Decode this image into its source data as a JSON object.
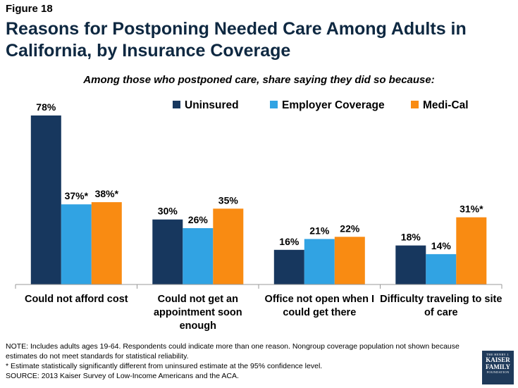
{
  "figure_label": "Figure 18",
  "title": "Reasons for Postponing Needed Care Among Adults in California, by Insurance Coverage",
  "subtitle": "Among those who postponed care, share saying they did so because:",
  "chart_data": {
    "type": "bar",
    "title": "Reasons for Postponing Needed Care Among Adults in California, by Insurance Coverage",
    "categories": [
      "Could not afford cost",
      "Could not get an appointment soon enough",
      "Office not open when I could get there",
      "Difficulty traveling to site of care"
    ],
    "category_lines": [
      [
        "Could not afford cost"
      ],
      [
        "Could not get an",
        "appointment soon",
        "enough"
      ],
      [
        "Office not open when I",
        "could get there"
      ],
      [
        "Difficulty traveling to site",
        "of care"
      ]
    ],
    "series": [
      {
        "name": "Uninsured",
        "color": "#17375e",
        "values": [
          78,
          30,
          16,
          18
        ],
        "labels": [
          "78%",
          "30%",
          "16%",
          "18%"
        ]
      },
      {
        "name": "Employer Coverage",
        "color": "#31a3e3",
        "values": [
          37,
          26,
          21,
          14
        ],
        "labels": [
          "37%*",
          "26%",
          "21%",
          "14%"
        ]
      },
      {
        "name": "Medi-Cal",
        "color": "#f98b12",
        "values": [
          38,
          35,
          22,
          31
        ],
        "labels": [
          "38%*",
          "35%",
          "22%",
          "31%*"
        ]
      }
    ],
    "ylim": [
      0,
      78
    ],
    "xlabel": "",
    "ylabel": "",
    "grid": false,
    "legend": "top-right"
  },
  "notes": [
    "NOTE: Includes adults ages 19-64. Respondents could indicate more than one reason. Nongroup coverage population not shown because estimates do not meet standards for statistical reliability.",
    "* Estimate statistically significantly different from uninsured estimate  at the 95% confidence level.",
    "SOURCE: 2013 Kaiser Survey of Low-Income Americans and the ACA."
  ],
  "logo": {
    "line1": "THE HENRY J.",
    "line2": "KAISER",
    "line3": "FAMILY",
    "line4": "FOUNDATION"
  }
}
